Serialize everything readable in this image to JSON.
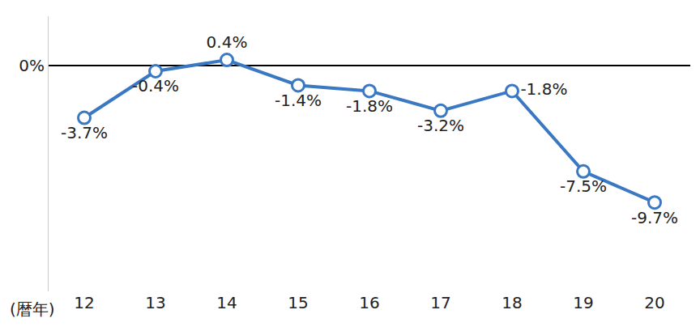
{
  "chart_data": {
    "type": "line",
    "x_label": "(暦年)",
    "categories": [
      "12",
      "13",
      "14",
      "15",
      "16",
      "17",
      "18",
      "19",
      "20"
    ],
    "values": [
      -3.7,
      -0.4,
      0.4,
      -1.4,
      -1.8,
      -3.2,
      -1.8,
      -7.5,
      -9.7
    ],
    "value_labels": [
      "-3.7%",
      "-0.4%",
      "0.4%",
      "-1.4%",
      "-1.8%",
      "-3.2%",
      "-1.8%",
      "-7.5%",
      "-9.7%"
    ],
    "data_labels": true,
    "color": "#3a78c3",
    "marker": "open circle",
    "ylim": [
      -16,
      3.5
    ],
    "yticks": [
      {
        "value": 0,
        "label": "0%"
      }
    ],
    "grid": false
  }
}
